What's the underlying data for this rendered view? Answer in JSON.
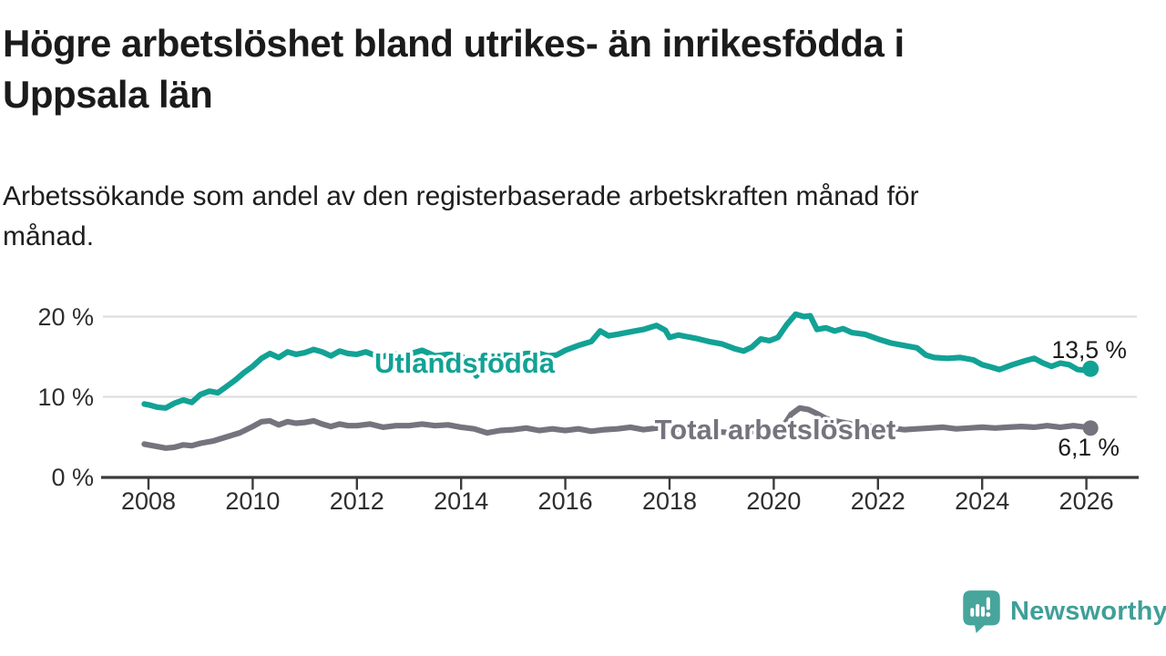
{
  "chart_data": {
    "type": "line",
    "title": "Högre arbetslöshet bland utrikes- än inrikesfödda i Uppsala län",
    "subtitle": "Arbetssökande som andel av den registerbaserade arbetskraften månad för månad.",
    "xlabel": "",
    "ylabel": "",
    "grid": "horizontal",
    "legend_position": "inline-on-line",
    "x_axis": {
      "ticks": [
        2008,
        2010,
        2012,
        2014,
        2016,
        2018,
        2020,
        2022,
        2024,
        2026
      ],
      "range": [
        2007.9,
        2026.8
      ]
    },
    "y_axis": {
      "unit": "%",
      "ticks": [
        {
          "value": 0,
          "label": "0 %"
        },
        {
          "value": 10,
          "label": "10 %"
        },
        {
          "value": 20,
          "label": "20 %"
        }
      ],
      "range": [
        0,
        22.5
      ]
    },
    "series": [
      {
        "name": "Utlandsfödda",
        "color": "#12a295",
        "end_value": 13.5,
        "end_label": "13,5 %",
        "points": [
          [
            2007.92,
            9.1
          ],
          [
            2008.0,
            9.0
          ],
          [
            2008.17,
            8.7
          ],
          [
            2008.33,
            8.6
          ],
          [
            2008.5,
            9.2
          ],
          [
            2008.67,
            9.6
          ],
          [
            2008.83,
            9.3
          ],
          [
            2009.0,
            10.3
          ],
          [
            2009.17,
            10.7
          ],
          [
            2009.33,
            10.5
          ],
          [
            2009.5,
            11.3
          ],
          [
            2009.67,
            12.1
          ],
          [
            2009.83,
            13.0
          ],
          [
            2010.0,
            13.8
          ],
          [
            2010.17,
            14.8
          ],
          [
            2010.33,
            15.4
          ],
          [
            2010.5,
            14.9
          ],
          [
            2010.67,
            15.6
          ],
          [
            2010.83,
            15.3
          ],
          [
            2011.0,
            15.5
          ],
          [
            2011.17,
            15.9
          ],
          [
            2011.33,
            15.6
          ],
          [
            2011.5,
            15.1
          ],
          [
            2011.67,
            15.7
          ],
          [
            2011.83,
            15.4
          ],
          [
            2012.0,
            15.3
          ],
          [
            2012.17,
            15.6
          ],
          [
            2012.33,
            15.2
          ],
          [
            2012.5,
            15.0
          ],
          [
            2012.67,
            15.4
          ],
          [
            2012.83,
            15.2
          ],
          [
            2013.0,
            15.3
          ],
          [
            2013.25,
            15.8
          ],
          [
            2013.5,
            15.1
          ],
          [
            2013.75,
            15.3
          ],
          [
            2014.0,
            15.1
          ],
          [
            2014.17,
            14.2
          ],
          [
            2014.29,
            12.6
          ],
          [
            2014.46,
            14.0
          ],
          [
            2014.63,
            15.0
          ],
          [
            2014.83,
            15.2
          ],
          [
            2015.0,
            15.1
          ],
          [
            2015.25,
            15.4
          ],
          [
            2015.5,
            15.4
          ],
          [
            2015.67,
            15.1
          ],
          [
            2015.83,
            15.2
          ],
          [
            2016.0,
            15.8
          ],
          [
            2016.25,
            16.4
          ],
          [
            2016.5,
            16.9
          ],
          [
            2016.67,
            18.2
          ],
          [
            2016.83,
            17.6
          ],
          [
            2017.0,
            17.8
          ],
          [
            2017.25,
            18.1
          ],
          [
            2017.5,
            18.4
          ],
          [
            2017.75,
            18.9
          ],
          [
            2017.92,
            18.3
          ],
          [
            2018.0,
            17.4
          ],
          [
            2018.17,
            17.7
          ],
          [
            2018.33,
            17.5
          ],
          [
            2018.5,
            17.3
          ],
          [
            2018.75,
            16.9
          ],
          [
            2019.0,
            16.6
          ],
          [
            2019.25,
            16.0
          ],
          [
            2019.42,
            15.7
          ],
          [
            2019.58,
            16.2
          ],
          [
            2019.75,
            17.2
          ],
          [
            2019.92,
            17.0
          ],
          [
            2020.08,
            17.4
          ],
          [
            2020.25,
            19.0
          ],
          [
            2020.42,
            20.3
          ],
          [
            2020.58,
            20.0
          ],
          [
            2020.7,
            20.1
          ],
          [
            2020.83,
            18.4
          ],
          [
            2021.0,
            18.6
          ],
          [
            2021.17,
            18.2
          ],
          [
            2021.33,
            18.5
          ],
          [
            2021.5,
            18.0
          ],
          [
            2021.75,
            17.8
          ],
          [
            2022.0,
            17.2
          ],
          [
            2022.25,
            16.7
          ],
          [
            2022.5,
            16.4
          ],
          [
            2022.75,
            16.1
          ],
          [
            2022.92,
            15.2
          ],
          [
            2023.08,
            14.9
          ],
          [
            2023.33,
            14.8
          ],
          [
            2023.58,
            14.9
          ],
          [
            2023.83,
            14.6
          ],
          [
            2024.0,
            14.0
          ],
          [
            2024.17,
            13.7
          ],
          [
            2024.33,
            13.4
          ],
          [
            2024.58,
            14.0
          ],
          [
            2024.83,
            14.5
          ],
          [
            2025.0,
            14.8
          ],
          [
            2025.17,
            14.2
          ],
          [
            2025.33,
            13.8
          ],
          [
            2025.5,
            14.2
          ],
          [
            2025.67,
            14.0
          ],
          [
            2025.83,
            13.4
          ],
          [
            2026.0,
            13.3
          ],
          [
            2026.08,
            13.5
          ]
        ]
      },
      {
        "name": "Total arbetslöshet",
        "color": "#75747e",
        "end_value": 6.1,
        "end_label": "6,1 %",
        "points": [
          [
            2007.92,
            4.1
          ],
          [
            2008.0,
            4.0
          ],
          [
            2008.17,
            3.8
          ],
          [
            2008.33,
            3.6
          ],
          [
            2008.5,
            3.7
          ],
          [
            2008.67,
            4.0
          ],
          [
            2008.83,
            3.9
          ],
          [
            2009.0,
            4.2
          ],
          [
            2009.25,
            4.5
          ],
          [
            2009.5,
            5.0
          ],
          [
            2009.75,
            5.5
          ],
          [
            2010.0,
            6.3
          ],
          [
            2010.17,
            6.9
          ],
          [
            2010.33,
            7.0
          ],
          [
            2010.5,
            6.5
          ],
          [
            2010.67,
            6.9
          ],
          [
            2010.83,
            6.7
          ],
          [
            2011.0,
            6.8
          ],
          [
            2011.17,
            7.0
          ],
          [
            2011.33,
            6.6
          ],
          [
            2011.5,
            6.3
          ],
          [
            2011.67,
            6.6
          ],
          [
            2011.83,
            6.4
          ],
          [
            2012.0,
            6.4
          ],
          [
            2012.25,
            6.6
          ],
          [
            2012.5,
            6.2
          ],
          [
            2012.75,
            6.4
          ],
          [
            2013.0,
            6.4
          ],
          [
            2013.25,
            6.6
          ],
          [
            2013.5,
            6.4
          ],
          [
            2013.75,
            6.5
          ],
          [
            2014.0,
            6.2
          ],
          [
            2014.25,
            6.0
          ],
          [
            2014.5,
            5.5
          ],
          [
            2014.75,
            5.8
          ],
          [
            2015.0,
            5.9
          ],
          [
            2015.25,
            6.1
          ],
          [
            2015.5,
            5.8
          ],
          [
            2015.75,
            6.0
          ],
          [
            2016.0,
            5.8
          ],
          [
            2016.25,
            6.0
          ],
          [
            2016.5,
            5.7
          ],
          [
            2016.75,
            5.9
          ],
          [
            2017.0,
            6.0
          ],
          [
            2017.25,
            6.2
          ],
          [
            2017.5,
            5.9
          ],
          [
            2017.75,
            6.1
          ],
          [
            2018.0,
            5.9
          ],
          [
            2018.25,
            6.0
          ],
          [
            2018.5,
            5.8
          ],
          [
            2018.75,
            5.7
          ],
          [
            2019.0,
            5.6
          ],
          [
            2019.25,
            5.5
          ],
          [
            2019.5,
            5.6
          ],
          [
            2019.75,
            5.8
          ],
          [
            2020.0,
            5.7
          ],
          [
            2020.17,
            6.2
          ],
          [
            2020.33,
            7.8
          ],
          [
            2020.5,
            8.6
          ],
          [
            2020.67,
            8.4
          ],
          [
            2020.83,
            7.9
          ],
          [
            2021.0,
            7.3
          ],
          [
            2021.17,
            7.0
          ],
          [
            2021.33,
            6.8
          ],
          [
            2021.5,
            6.6
          ],
          [
            2021.75,
            6.4
          ],
          [
            2022.0,
            6.2
          ],
          [
            2022.25,
            6.1
          ],
          [
            2022.5,
            5.9
          ],
          [
            2022.75,
            6.0
          ],
          [
            2023.0,
            6.1
          ],
          [
            2023.25,
            6.2
          ],
          [
            2023.5,
            6.0
          ],
          [
            2023.75,
            6.1
          ],
          [
            2024.0,
            6.2
          ],
          [
            2024.25,
            6.1
          ],
          [
            2024.5,
            6.2
          ],
          [
            2024.75,
            6.3
          ],
          [
            2025.0,
            6.2
          ],
          [
            2025.25,
            6.4
          ],
          [
            2025.5,
            6.2
          ],
          [
            2025.75,
            6.4
          ],
          [
            2026.0,
            6.2
          ],
          [
            2026.08,
            6.1
          ]
        ]
      }
    ]
  },
  "colors": {
    "foreign_born_line": "#12a295",
    "total_line": "#75747e",
    "grid": "#dbdbdb",
    "axis": "#3b3b3b",
    "tick_text": "#2e2e2e",
    "title_text": "#1b1b1b",
    "value_label_text": "#1b1b1b",
    "brand_teal": "#3f9f98"
  },
  "branding": {
    "logo_text": "Newsworthy",
    "logo_icon": "newsworthy-speech-bubble-barchart-icon"
  }
}
